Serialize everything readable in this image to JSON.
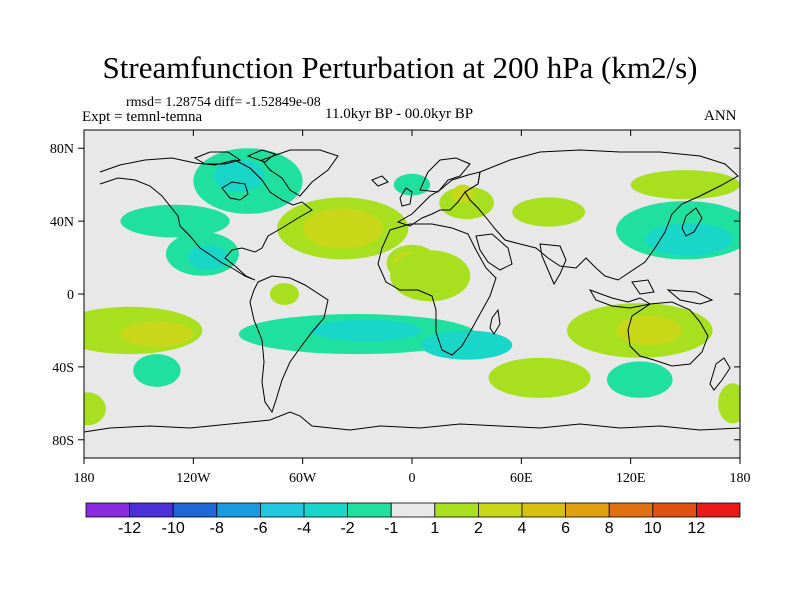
{
  "title": "Streamfunction Perturbation at 200 hPa (km2/s)",
  "stats": "rmsd= 1.28754 diff= -1.52849e-08",
  "experiment": "Expt = temnl-temna",
  "period": "11.0kyr BP - 00.0kyr BP",
  "season": "ANN",
  "colors": {
    "neg12": "#8a2be2",
    "neg10": "#4b30d8",
    "neg8": "#1f66d8",
    "neg6": "#1a9be0",
    "neg4": "#20c8e0",
    "neg2": "#19d7c8",
    "neg1": "#20e0a0",
    "zero": "#e8e8e8",
    "pos1": "#a8e020",
    "pos2": "#c8d818",
    "pos4": "#d8c010",
    "pos6": "#e0a010",
    "pos8": "#e07010",
    "pos10": "#e05010",
    "pos12": "#e02010",
    "pos_max": "#e81a1a"
  },
  "chart_data": {
    "type": "map-contour",
    "projection": "cylindrical-equidistant",
    "title": "Streamfunction Perturbation at 200 hPa (km2/s)",
    "units": "km2/s",
    "x_range": [
      -180,
      180
    ],
    "y_range": [
      -90,
      90
    ],
    "x_ticks": [
      {
        "value": -180,
        "label": "180"
      },
      {
        "value": -120,
        "label": "120W"
      },
      {
        "value": -60,
        "label": "60W"
      },
      {
        "value": 0,
        "label": "0"
      },
      {
        "value": 60,
        "label": "60E"
      },
      {
        "value": 120,
        "label": "120E"
      },
      {
        "value": 180,
        "label": "180"
      }
    ],
    "y_ticks": [
      {
        "value": 80,
        "label": "80N"
      },
      {
        "value": 40,
        "label": "40N"
      },
      {
        "value": 0,
        "label": "0"
      },
      {
        "value": -40,
        "label": "40S"
      },
      {
        "value": -80,
        "label": "80S"
      }
    ],
    "contour_levels": [
      -12,
      -10,
      -8,
      -6,
      -4,
      -2,
      -1,
      1,
      2,
      4,
      6,
      8,
      10,
      12
    ],
    "colorbar_labels": [
      "-12",
      "-10",
      "-8",
      "-6",
      "-4",
      "-2",
      "-1",
      "1",
      "2",
      "4",
      "6",
      "8",
      "10",
      "12"
    ],
    "colorbar_colors": [
      "#8a2be2",
      "#4b30d8",
      "#1f66d8",
      "#1a9be0",
      "#20c8e0",
      "#19d7c8",
      "#20e0a0",
      "#e8e8e8",
      "#a8e020",
      "#c8d818",
      "#d8c010",
      "#e0a010",
      "#e07010",
      "#e05010",
      "#e81a1a"
    ],
    "field_features": [
      {
        "lon": -90,
        "lat": 62,
        "rx": 30,
        "ry": 18,
        "level": "neg1"
      },
      {
        "lon": -95,
        "lat": 65,
        "rx": 14,
        "ry": 9,
        "level": "neg2"
      },
      {
        "lon": -130,
        "lat": 40,
        "rx": 30,
        "ry": 9,
        "level": "neg1"
      },
      {
        "lon": -115,
        "lat": 22,
        "rx": 20,
        "ry": 12,
        "level": "neg1"
      },
      {
        "lon": -112,
        "lat": 20,
        "rx": 11,
        "ry": 7,
        "level": "neg2"
      },
      {
        "lon": -38,
        "lat": 36,
        "rx": 36,
        "ry": 17,
        "level": "pos1"
      },
      {
        "lon": -38,
        "lat": 36,
        "rx": 22,
        "ry": 11,
        "level": "pos2"
      },
      {
        "lon": 0,
        "lat": 17,
        "rx": 14,
        "ry": 10,
        "level": "pos1"
      },
      {
        "lon": -2,
        "lat": 17,
        "rx": 8,
        "ry": 6,
        "level": "pos2"
      },
      {
        "lon": 10,
        "lat": 10,
        "rx": 22,
        "ry": 14,
        "level": "pos1"
      },
      {
        "lon": 0,
        "lat": 60,
        "rx": 10,
        "ry": 6,
        "level": "neg1"
      },
      {
        "lon": 30,
        "lat": 50,
        "rx": 15,
        "ry": 9,
        "level": "pos1"
      },
      {
        "lon": 28,
        "lat": 55,
        "rx": 6,
        "ry": 5,
        "level": "pos2"
      },
      {
        "lon": 75,
        "lat": 45,
        "rx": 20,
        "ry": 8,
        "level": "pos1"
      },
      {
        "lon": 150,
        "lat": 35,
        "rx": 38,
        "ry": 16,
        "level": "neg1"
      },
      {
        "lon": 152,
        "lat": 30,
        "rx": 24,
        "ry": 9,
        "level": "neg2"
      },
      {
        "lon": 150,
        "lat": 60,
        "rx": 30,
        "ry": 8,
        "level": "pos1"
      },
      {
        "lon": -70,
        "lat": 0,
        "rx": 8,
        "ry": 6,
        "level": "pos1"
      },
      {
        "lon": -155,
        "lat": -20,
        "rx": 40,
        "ry": 13,
        "level": "pos1"
      },
      {
        "lon": -140,
        "lat": -22,
        "rx": 20,
        "ry": 7,
        "level": "pos2"
      },
      {
        "lon": -30,
        "lat": -22,
        "rx": 65,
        "ry": 11,
        "level": "neg1"
      },
      {
        "lon": -25,
        "lat": -20,
        "rx": 30,
        "ry": 6,
        "level": "neg2"
      },
      {
        "lon": 30,
        "lat": -28,
        "rx": 25,
        "ry": 8,
        "level": "neg2"
      },
      {
        "lon": 125,
        "lat": -20,
        "rx": 40,
        "ry": 15,
        "level": "pos1"
      },
      {
        "lon": 130,
        "lat": -20,
        "rx": 18,
        "ry": 8,
        "level": "pos2"
      },
      {
        "lon": 70,
        "lat": -46,
        "rx": 28,
        "ry": 11,
        "level": "pos1"
      },
      {
        "lon": 125,
        "lat": -47,
        "rx": 18,
        "ry": 10,
        "level": "neg1"
      },
      {
        "lon": -140,
        "lat": -42,
        "rx": 13,
        "ry": 9,
        "level": "neg1"
      },
      {
        "lon": -178,
        "lat": -63,
        "rx": 10,
        "ry": 9,
        "level": "pos1"
      },
      {
        "lon": 176,
        "lat": -60,
        "rx": 8,
        "ry": 11,
        "level": "pos1"
      }
    ]
  }
}
